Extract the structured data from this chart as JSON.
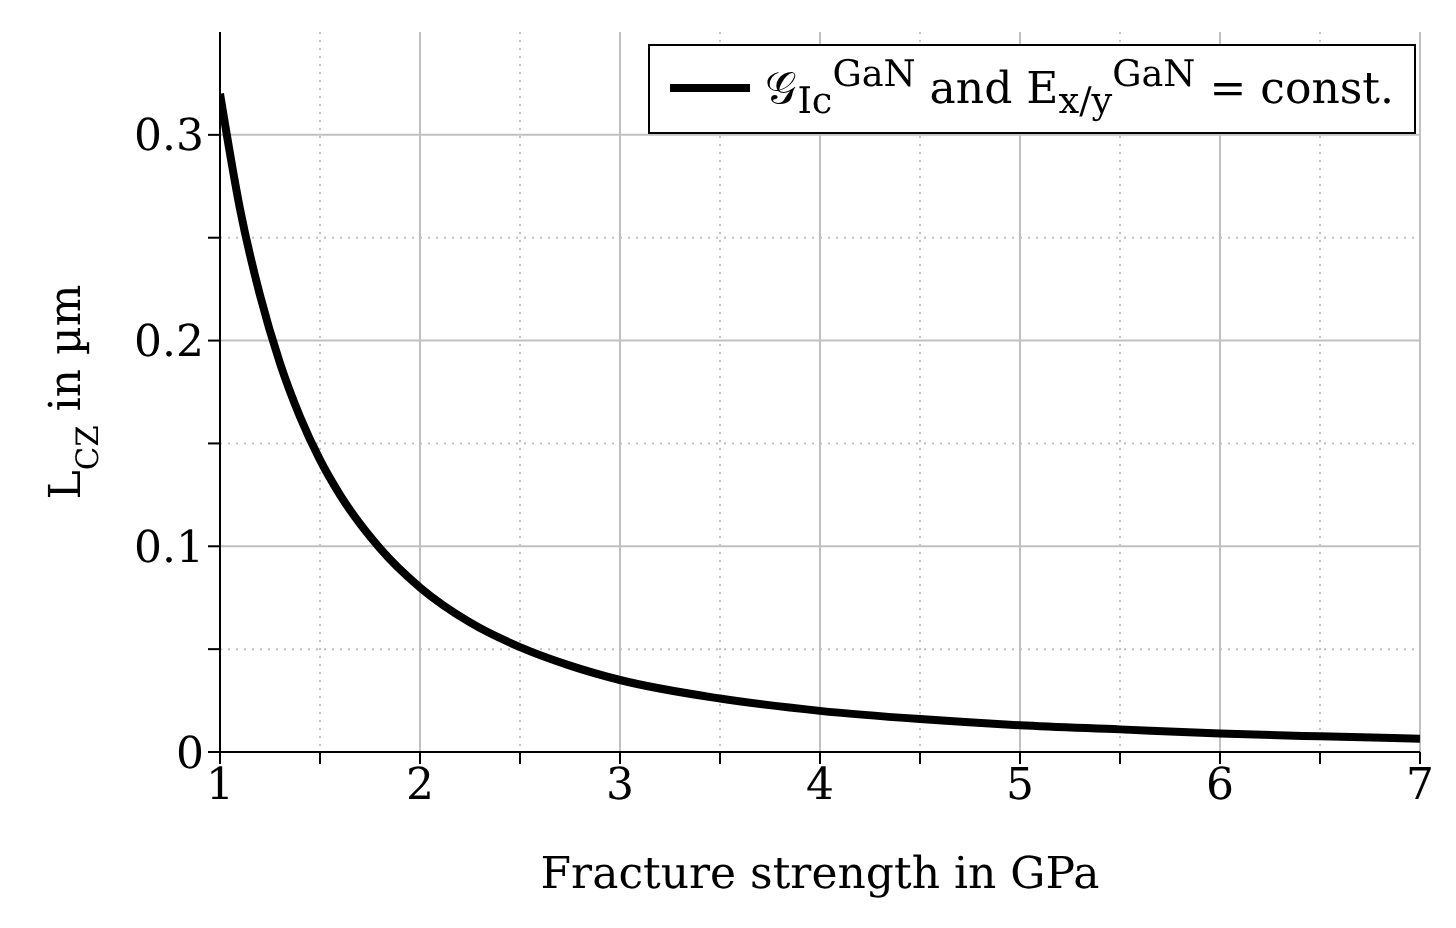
{
  "chart_data": {
    "type": "line",
    "xlabel": "Fracture strength in GPa",
    "ylabel": "L$_{CZ}$ in µm",
    "x": [
      1,
      1.1,
      1.2,
      1.3,
      1.4,
      1.5,
      1.6,
      1.8,
      2,
      2.25,
      2.5,
      2.75,
      3,
      3.5,
      4,
      4.5,
      5,
      5.5,
      6,
      6.5,
      7
    ],
    "series": [
      {
        "name": "𝒢$_{Ic}$$^{GaN}$ and E$_{x/y}$$^{GaN}$ = const.",
        "color": "#000000",
        "values": [
          0.32,
          0.264,
          0.222,
          0.189,
          0.163,
          0.142,
          0.125,
          0.099,
          0.08,
          0.063,
          0.051,
          0.042,
          0.035,
          0.026,
          0.02,
          0.016,
          0.013,
          0.011,
          0.009,
          0.0076,
          0.0065
        ]
      }
    ],
    "xlim": [
      1,
      7
    ],
    "xticks": [
      1,
      {
        "value": 1.5,
        "label": null
      },
      2,
      {
        "value": 2.5,
        "label": null
      },
      3,
      {
        "value": 3.5,
        "label": null
      },
      4,
      {
        "value": 4.5,
        "label": null
      },
      5,
      {
        "value": 5.5,
        "label": null
      },
      6,
      {
        "value": 6.5,
        "label": null
      },
      7
    ],
    "ylim": [
      0,
      0.35
    ],
    "yticks": [
      0,
      {
        "value": 0.05,
        "label": null
      },
      0.1,
      {
        "value": 0.15,
        "label": null
      },
      0.2,
      {
        "value": 0.25,
        "label": null
      },
      0.3
    ],
    "grid": true,
    "legend": "top right",
    "marker": "none",
    "line_style": "solid"
  }
}
